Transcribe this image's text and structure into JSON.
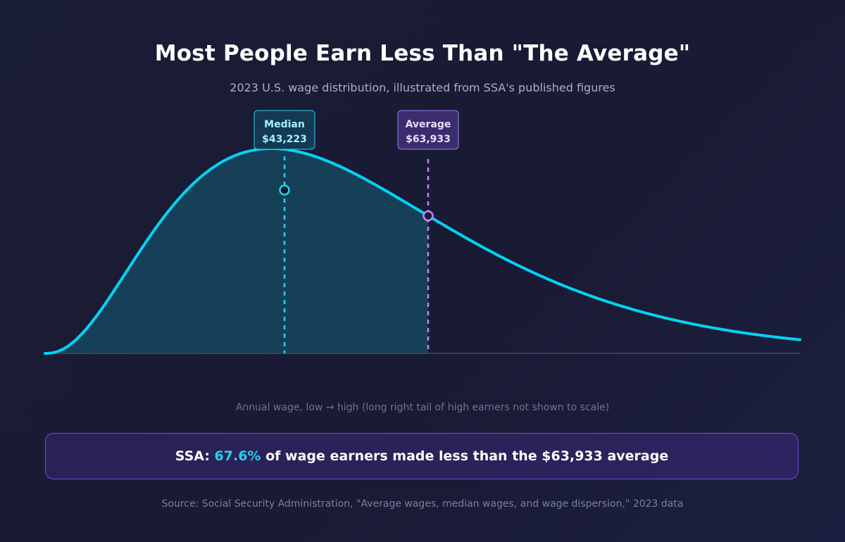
{
  "header": {
    "title": "Most People Earn Less Than \"The Average\"",
    "subtitle": "2023 U.S. wage distribution, illustrated from SSA's published figures"
  },
  "chart_data": {
    "type": "area",
    "xlabel": "Annual wage, low → high (long right tail of high earners not shown to scale)",
    "ylabel": "",
    "grid": false,
    "markers": [
      {
        "name": "Median",
        "value_label": "$43,223",
        "value": 43223,
        "color": "#22d3ee"
      },
      {
        "name": "Average",
        "value_label": "$63,933",
        "value": 63933,
        "color": "#c084fc"
      }
    ],
    "shaded_region": "wages below the average",
    "colors": {
      "curve": "#00d4f5",
      "fill": "#164058",
      "median": "#22d3ee",
      "average": "#c084fc",
      "baseline": "#3b4058"
    }
  },
  "callout": {
    "prefix": "SSA: ",
    "percent": "67.6%",
    "suffix": " of wage earners made less than the $63,933 average"
  },
  "source": "Source: Social Security Administration, \"Average wages, median wages, and wage dispersion,\" 2023 data"
}
